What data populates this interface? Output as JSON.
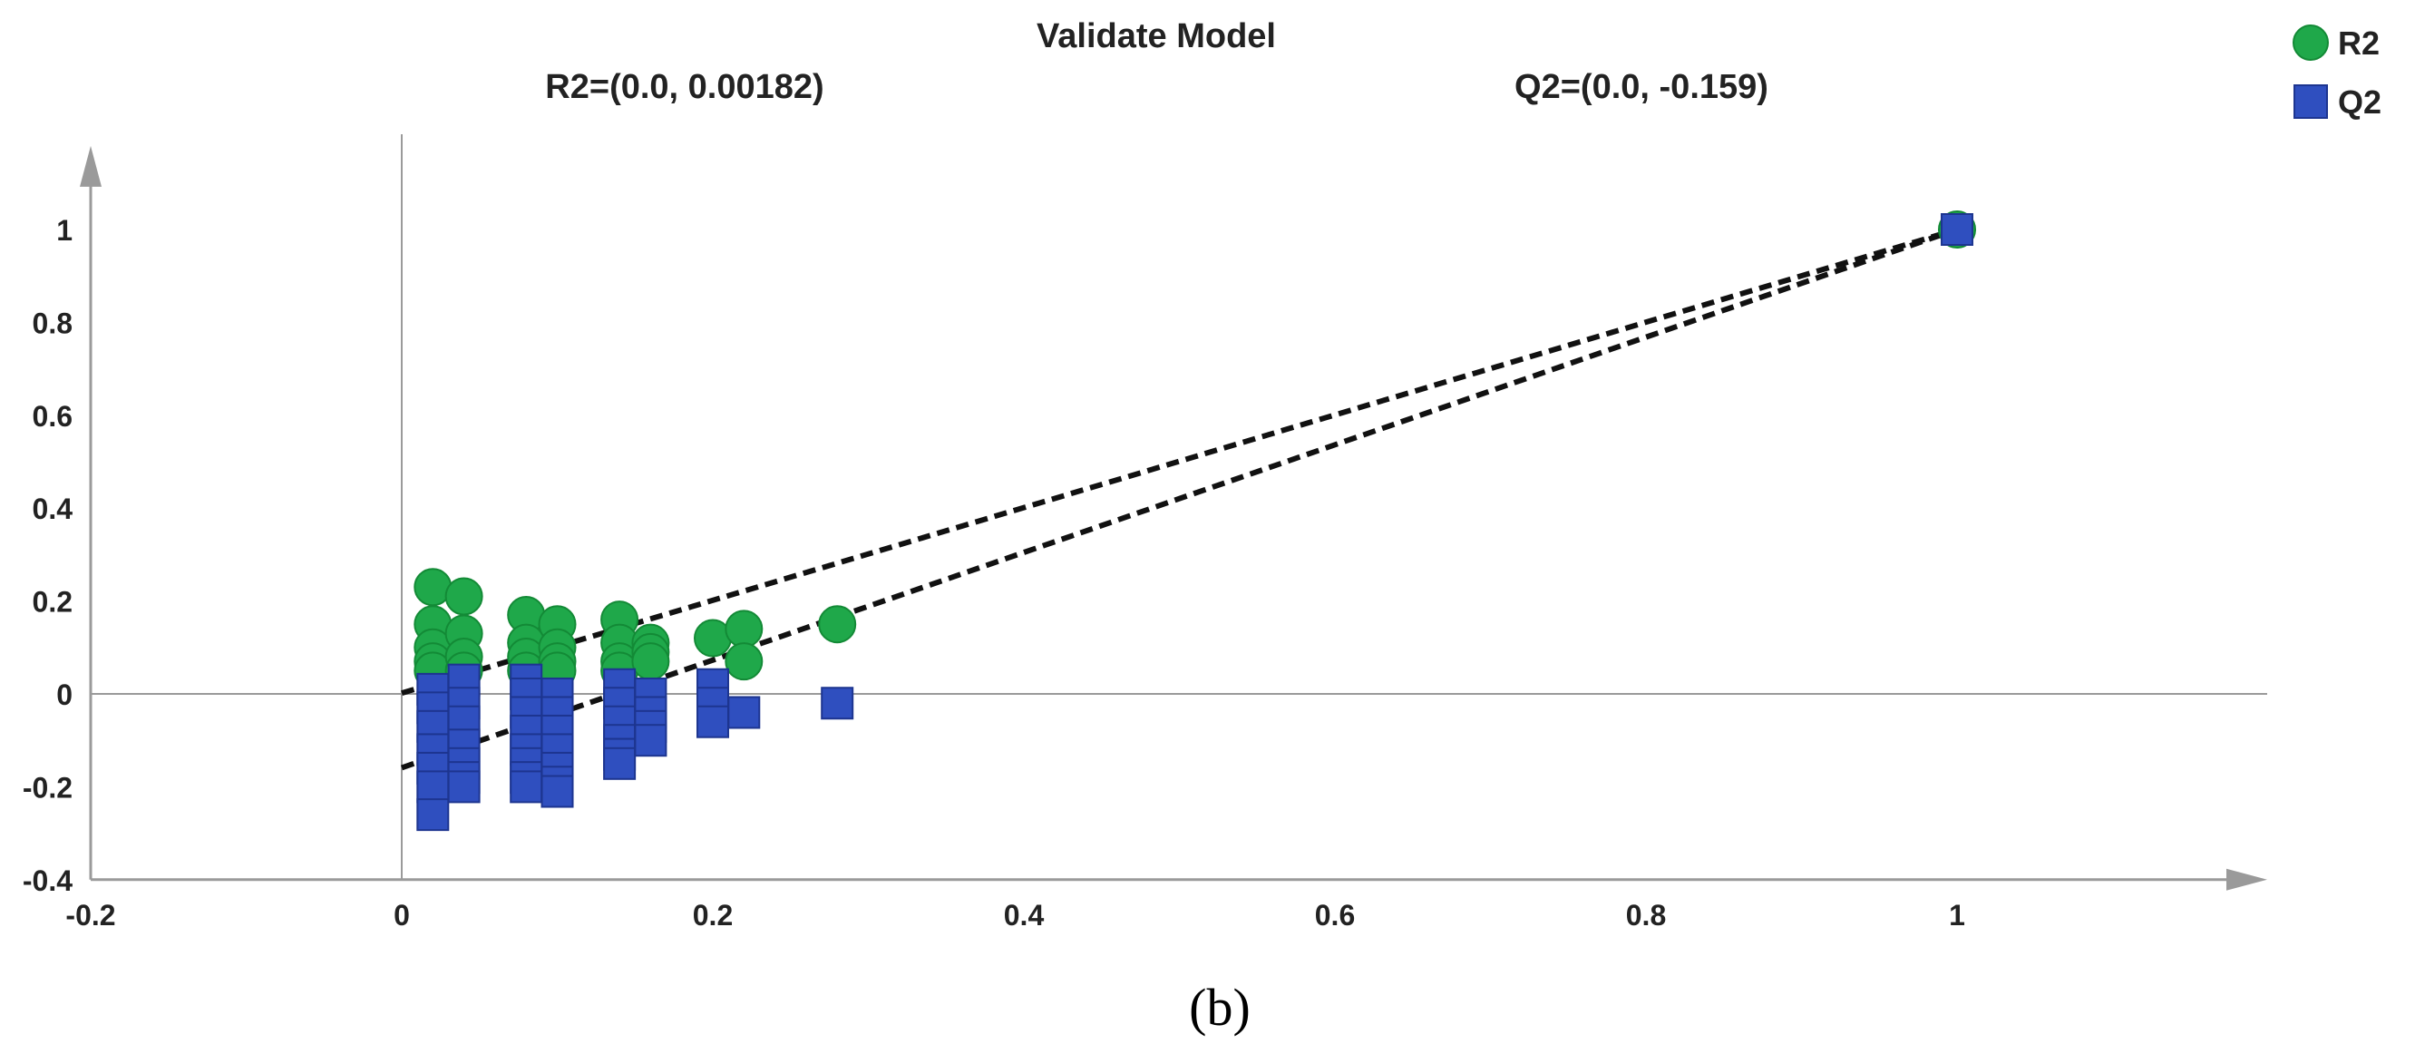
{
  "chart_data": {
    "type": "scatter",
    "title": "Validate Model",
    "subtitle_r2": "R2=(0.0, 0.00182)",
    "subtitle_q2": "Q2=(0.0, -0.159)",
    "panel_label": "(b)",
    "xlim": [
      -0.2,
      1.15
    ],
    "ylim": [
      -0.4,
      1.18
    ],
    "x_ticks": [
      "-0.2",
      "0",
      "0.2",
      "0.4",
      "0.6",
      "0.8",
      "1"
    ],
    "x_tick_values": [
      -0.2,
      0,
      0.2,
      0.4,
      0.6,
      0.8,
      1
    ],
    "y_ticks": [
      "1",
      "0.8",
      "0.6",
      "0.4",
      "0.2",
      "0",
      "-0.2",
      "-0.4"
    ],
    "y_tick_values": [
      1,
      0.8,
      0.6,
      0.4,
      0.2,
      0,
      -0.2,
      -0.4
    ],
    "legend": [
      {
        "name": "R2",
        "shape": "circle",
        "color": "#1fa84a"
      },
      {
        "name": "Q2",
        "shape": "square",
        "color": "#2f4fbf"
      }
    ],
    "series": [
      {
        "name": "R2",
        "color": "#1fa84a",
        "stroke": "#138a36",
        "x": [
          0.02,
          0.02,
          0.02,
          0.02,
          0.02,
          0.04,
          0.04,
          0.04,
          0.04,
          0.08,
          0.08,
          0.08,
          0.08,
          0.1,
          0.1,
          0.1,
          0.1,
          0.14,
          0.14,
          0.14,
          0.14,
          0.16,
          0.16,
          0.16,
          0.2,
          0.22,
          0.22,
          0.28,
          1.0
        ],
        "y": [
          0.23,
          0.15,
          0.1,
          0.07,
          0.05,
          0.21,
          0.13,
          0.08,
          0.05,
          0.17,
          0.11,
          0.08,
          0.05,
          0.15,
          0.1,
          0.07,
          0.05,
          0.16,
          0.11,
          0.07,
          0.05,
          0.11,
          0.09,
          0.07,
          0.12,
          0.14,
          0.07,
          0.15,
          1.0
        ]
      },
      {
        "name": "Q2",
        "color": "#2f4fbf",
        "stroke": "#1d3590",
        "x": [
          0.02,
          0.02,
          0.02,
          0.02,
          0.02,
          0.02,
          0.02,
          0.04,
          0.04,
          0.04,
          0.04,
          0.04,
          0.04,
          0.04,
          0.08,
          0.08,
          0.08,
          0.08,
          0.08,
          0.08,
          0.08,
          0.08,
          0.1,
          0.1,
          0.1,
          0.1,
          0.1,
          0.1,
          0.1,
          0.14,
          0.14,
          0.14,
          0.14,
          0.14,
          0.14,
          0.16,
          0.16,
          0.16,
          0.16,
          0.2,
          0.2,
          0.2,
          0.22,
          0.28,
          1.0
        ],
        "y": [
          0.01,
          -0.03,
          -0.07,
          -0.12,
          -0.16,
          -0.2,
          -0.26,
          0.03,
          -0.02,
          -0.06,
          -0.11,
          -0.15,
          -0.18,
          -0.2,
          0.03,
          0.0,
          -0.04,
          -0.08,
          -0.12,
          -0.15,
          -0.18,
          -0.2,
          0.0,
          -0.04,
          -0.08,
          -0.12,
          -0.16,
          -0.19,
          -0.21,
          0.02,
          -0.02,
          -0.06,
          -0.1,
          -0.13,
          -0.15,
          0.0,
          -0.04,
          -0.07,
          -0.1,
          0.02,
          -0.02,
          -0.06,
          -0.04,
          -0.02,
          1.0
        ]
      }
    ],
    "regression_lines": [
      {
        "name": "R2 regression",
        "x": [
          0.0,
          1.0
        ],
        "y": [
          0.00182,
          1.0
        ]
      },
      {
        "name": "Q2 regression",
        "x": [
          0.0,
          1.0
        ],
        "y": [
          -0.159,
          1.0
        ]
      }
    ]
  }
}
